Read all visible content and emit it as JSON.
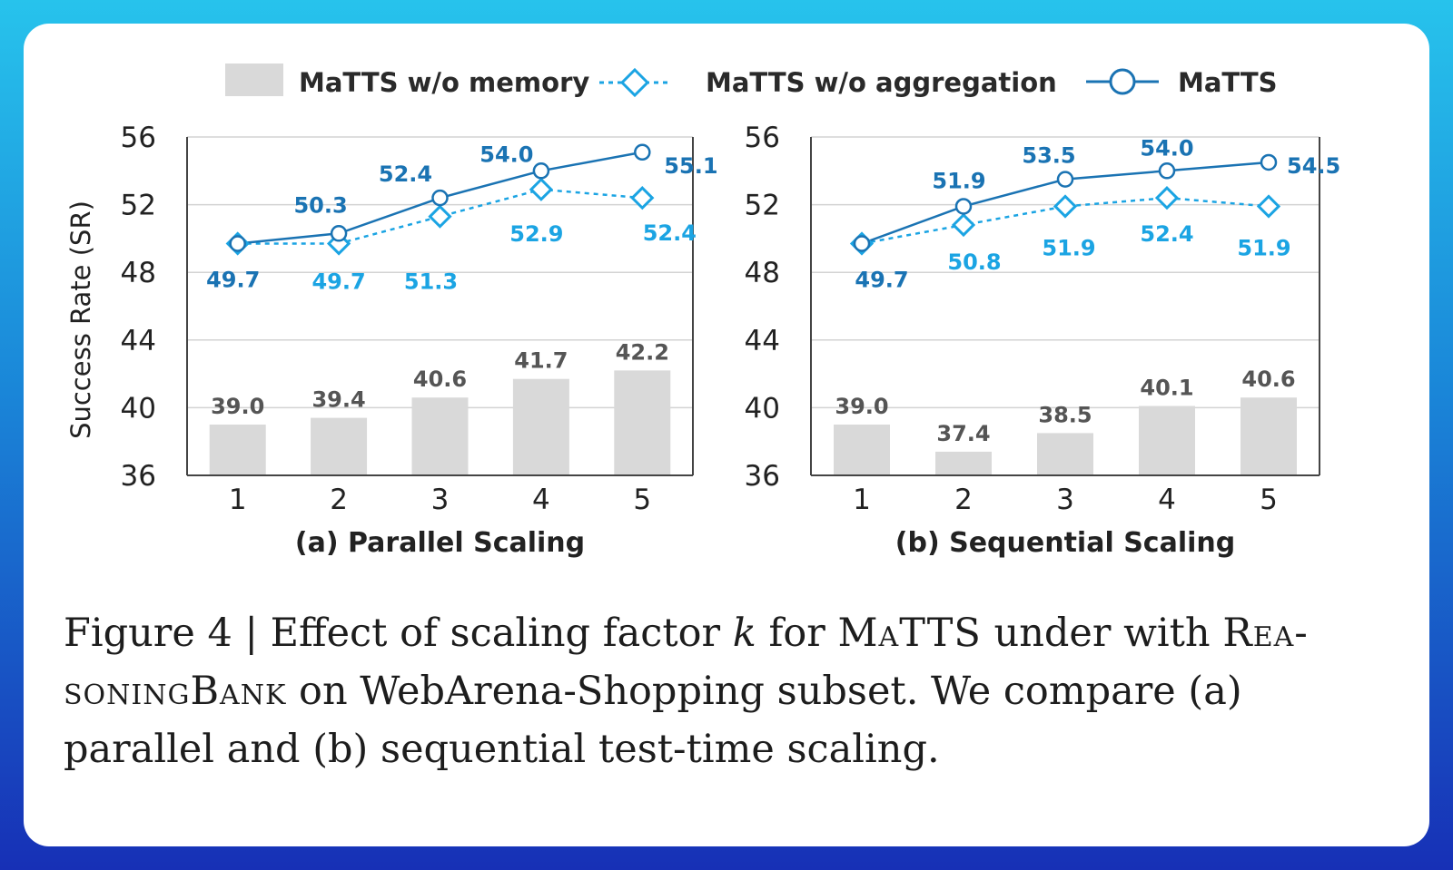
{
  "legend": {
    "bar_label": "MaTTS w/o memory",
    "dashed_label": "MaTTS w/o aggregation",
    "solid_label": "MaTTS"
  },
  "colors": {
    "bar": "#d9d9d9",
    "bar_label": "#555555",
    "dashed": "#1ba4e3",
    "solid": "#1a73b3",
    "grid": "#d3d3d3",
    "axis": "#444444"
  },
  "chart_data": [
    {
      "type": "bar+line",
      "title": "(a) Parallel Scaling",
      "ylabel": "Success Rate (SR)",
      "categories": [
        "1",
        "2",
        "3",
        "4",
        "5"
      ],
      "ylim": [
        36,
        56
      ],
      "yticks": [
        36,
        40,
        44,
        48,
        52,
        56
      ],
      "grid": true,
      "legend_position": "top",
      "series": [
        {
          "name": "MaTTS w/o memory",
          "kind": "bar",
          "values": [
            39.0,
            39.4,
            40.6,
            41.7,
            42.2
          ],
          "labels": [
            "39.0",
            "39.4",
            "40.6",
            "41.7",
            "42.2"
          ]
        },
        {
          "name": "MaTTS w/o aggregation",
          "kind": "dashed-line",
          "marker": "diamond",
          "values": [
            49.7,
            49.7,
            51.3,
            52.9,
            52.4
          ],
          "labels": [
            "",
            "49.7",
            "51.3",
            "52.9",
            "52.4"
          ]
        },
        {
          "name": "MaTTS",
          "kind": "solid-line",
          "marker": "circle",
          "values": [
            49.7,
            50.3,
            52.4,
            54.0,
            55.1
          ],
          "labels": [
            "49.7",
            "50.3",
            "52.4",
            "54.0",
            "55.1"
          ]
        }
      ]
    },
    {
      "type": "bar+line",
      "title": "(b) Sequential Scaling",
      "ylabel": "",
      "categories": [
        "1",
        "2",
        "3",
        "4",
        "5"
      ],
      "ylim": [
        36,
        56
      ],
      "yticks": [
        36,
        40,
        44,
        48,
        52,
        56
      ],
      "grid": true,
      "series": [
        {
          "name": "MaTTS w/o memory",
          "kind": "bar",
          "values": [
            39.0,
            37.4,
            38.5,
            40.1,
            40.6
          ],
          "labels": [
            "39.0",
            "37.4",
            "38.5",
            "40.1",
            "40.6"
          ]
        },
        {
          "name": "MaTTS w/o aggregation",
          "kind": "dashed-line",
          "marker": "diamond",
          "values": [
            49.7,
            50.8,
            51.9,
            52.4,
            51.9
          ],
          "labels": [
            "",
            "50.8",
            "51.9",
            "52.4",
            "51.9"
          ]
        },
        {
          "name": "MaTTS",
          "kind": "solid-line",
          "marker": "circle",
          "values": [
            49.7,
            51.9,
            53.5,
            54.0,
            54.5
          ],
          "labels": [
            "49.7",
            "51.9",
            "53.5",
            "54.0",
            "54.5"
          ]
        }
      ]
    }
  ],
  "caption": {
    "prefix": "Figure 4 | Effect of scaling factor ",
    "k": "k",
    "mid1": " for ",
    "matts": "MaTTS",
    "mid2": " under with ",
    "rb_part1": "Rea-",
    "rb_part2": "soningBank",
    "suffix": " on WebArena-Shopping subset. We compare (a) parallel and (b) sequential test-time scaling."
  }
}
